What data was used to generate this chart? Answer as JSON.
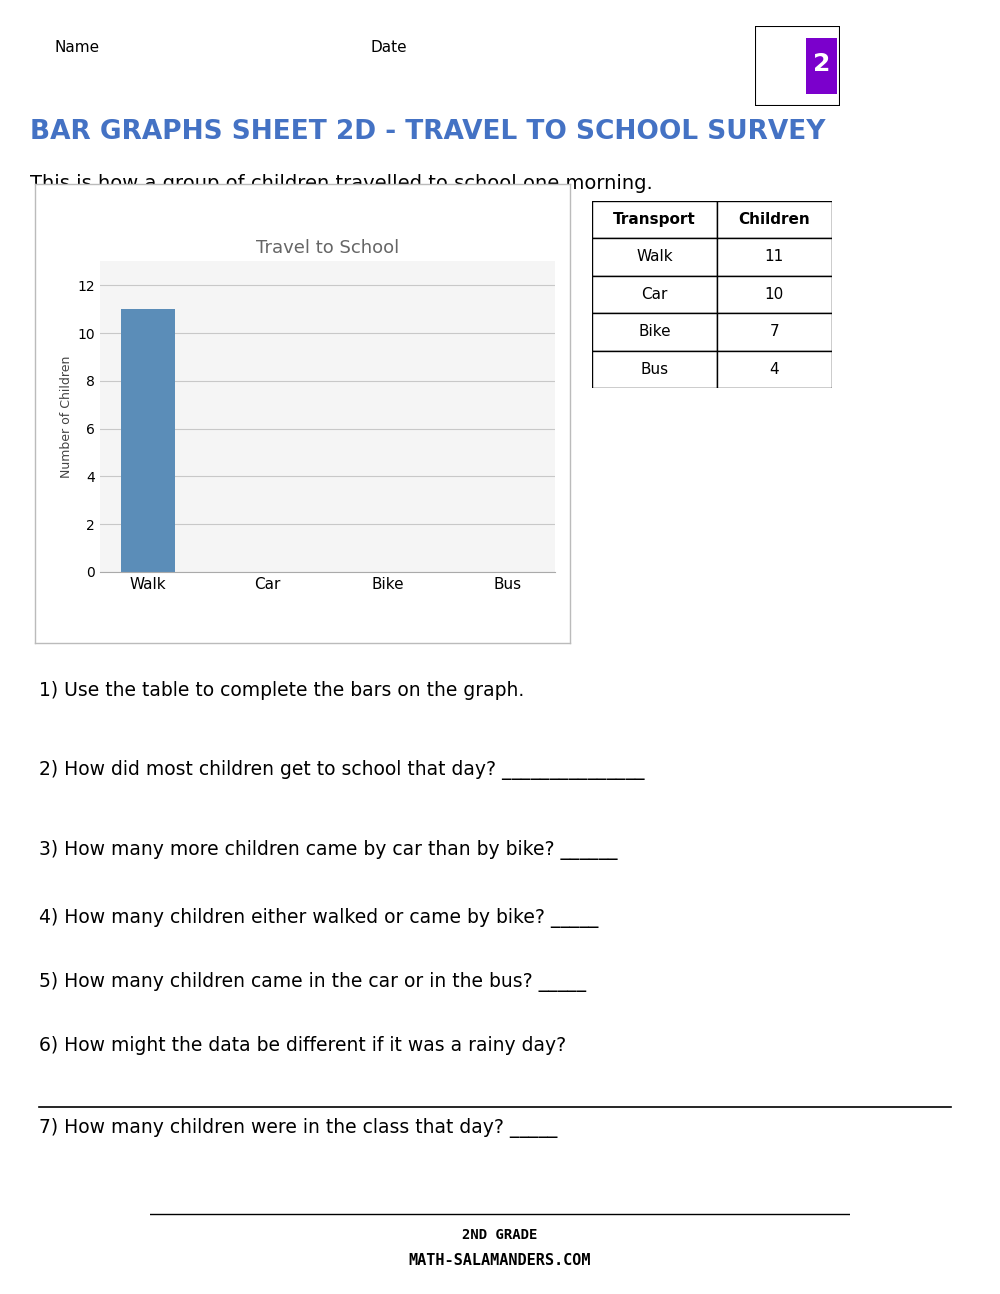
{
  "title": "BAR GRAPHS SHEET 2D - TRAVEL TO SCHOOL SURVEY",
  "subtitle": "This is how a group of children travelled to school one morning.",
  "name_label": "Name",
  "date_label": "Date",
  "chart_title": "Travel to School",
  "chart_ylabel": "Number of Children",
  "chart_xlabel_categories": [
    "Walk",
    "Car",
    "Bike",
    "Bus"
  ],
  "chart_values": [
    11,
    0,
    0,
    0
  ],
  "chart_ylim": [
    0,
    13
  ],
  "chart_yticks": [
    0,
    2,
    4,
    6,
    8,
    10,
    12
  ],
  "bar_color_walk": "#5B8DB8",
  "table_headers": [
    "Transport",
    "Children"
  ],
  "table_data": [
    [
      "Walk",
      "11"
    ],
    [
      "Car",
      "10"
    ],
    [
      "Bike",
      "7"
    ],
    [
      "Bus",
      "4"
    ]
  ],
  "questions": [
    "1) Use the table to complete the bars on the graph.",
    "2) How did most children get to school that day? _______________",
    "3) How many more children came by car than by bike? ______",
    "4) How many children either walked or came by bike? _____",
    "5) How many children came in the car or in the bus? _____",
    "6) How might the data be different if it was a rainy day?",
    "7) How many children were in the class that day? _____"
  ],
  "page_bg": "#FFFFFF",
  "header_bar_color": "#000000",
  "title_color": "#4472C4",
  "chart_bg": "#F5F5F5",
  "grid_color": "#C8C8C8"
}
